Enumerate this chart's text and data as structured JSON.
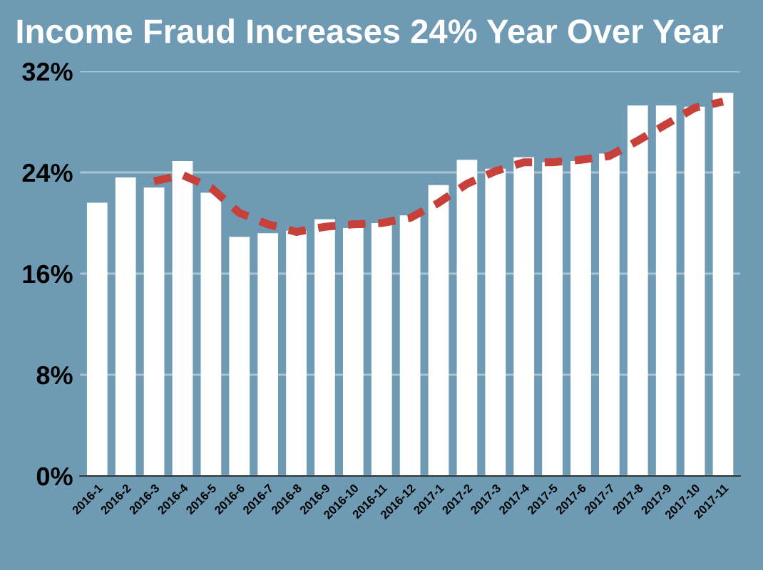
{
  "chart_data": {
    "type": "bar",
    "title": "Income Fraud Increases 24% Year Over Year",
    "categories": [
      "2016-1",
      "2016-2",
      "2016-3",
      "2016-4",
      "2016-5",
      "2016-6",
      "2016-7",
      "2016-8",
      "2016-9",
      "2016-10",
      "2016-11",
      "2016-12",
      "2017-1",
      "2017-2",
      "2017-3",
      "2017-4",
      "2017-5",
      "2017-6",
      "2017-7",
      "2017-8",
      "2017-9",
      "2017-10",
      "2017-11"
    ],
    "series": [
      {
        "color": "#ffffff",
        "values": [
          21.6,
          23.6,
          22.8,
          24.9,
          22.4,
          18.9,
          19.2,
          19.4,
          20.3,
          19.6,
          20.0,
          20.6,
          23.0,
          25.0,
          24.3,
          25.2,
          24.8,
          24.9,
          25.5,
          29.3,
          29.3,
          29.2,
          30.3
        ]
      },
      {
        "type": "line",
        "color": "#c8403a",
        "line_style": "dashed",
        "marker": "none",
        "values": [
          null,
          null,
          23.3,
          23.8,
          22.8,
          20.8,
          19.9,
          19.3,
          19.7,
          19.9,
          20.0,
          20.4,
          21.6,
          23.1,
          24.1,
          24.8,
          24.8,
          25.0,
          25.3,
          26.5,
          27.8,
          29.1,
          29.6
        ]
      }
    ],
    "ylim": [
      0,
      32
    ],
    "yticks": [
      {
        "value": 0,
        "label": "0%"
      },
      {
        "value": 8,
        "label": "8%"
      },
      {
        "value": 16,
        "label": "16%"
      },
      {
        "value": 24,
        "label": "24%"
      },
      {
        "value": 32,
        "label": "32%"
      }
    ],
    "grid": "y",
    "legend": false
  }
}
